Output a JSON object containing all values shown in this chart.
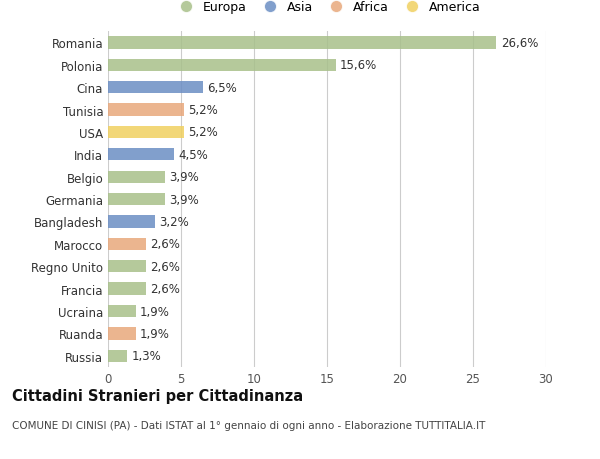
{
  "countries": [
    "Romania",
    "Polonia",
    "Cina",
    "Tunisia",
    "USA",
    "India",
    "Belgio",
    "Germania",
    "Bangladesh",
    "Marocco",
    "Regno Unito",
    "Francia",
    "Ucraina",
    "Ruanda",
    "Russia"
  ],
  "values": [
    26.6,
    15.6,
    6.5,
    5.2,
    5.2,
    4.5,
    3.9,
    3.9,
    3.2,
    2.6,
    2.6,
    2.6,
    1.9,
    1.9,
    1.3
  ],
  "labels": [
    "26,6%",
    "15,6%",
    "6,5%",
    "5,2%",
    "5,2%",
    "4,5%",
    "3,9%",
    "3,9%",
    "3,2%",
    "2,6%",
    "2,6%",
    "2,6%",
    "1,9%",
    "1,9%",
    "1,3%"
  ],
  "continents": [
    "Europa",
    "Europa",
    "Asia",
    "Africa",
    "America",
    "Asia",
    "Europa",
    "Europa",
    "Asia",
    "Africa",
    "Europa",
    "Europa",
    "Europa",
    "Africa",
    "Europa"
  ],
  "colors": {
    "Europa": "#a8c08a",
    "Asia": "#6b8ec4",
    "Africa": "#e8a87c",
    "America": "#f0d060"
  },
  "legend_order": [
    "Europa",
    "Asia",
    "Africa",
    "America"
  ],
  "xlim": [
    0,
    30
  ],
  "xticks": [
    0,
    5,
    10,
    15,
    20,
    25,
    30
  ],
  "title": "Cittadini Stranieri per Cittadinanza",
  "subtitle": "COMUNE DI CINISI (PA) - Dati ISTAT al 1° gennaio di ogni anno - Elaborazione TUTTITALIA.IT",
  "background_color": "#ffffff",
  "bar_height": 0.55,
  "grid_color": "#cccccc",
  "label_fontsize": 8.5,
  "tick_fontsize": 8.5,
  "title_fontsize": 10.5,
  "subtitle_fontsize": 7.5
}
